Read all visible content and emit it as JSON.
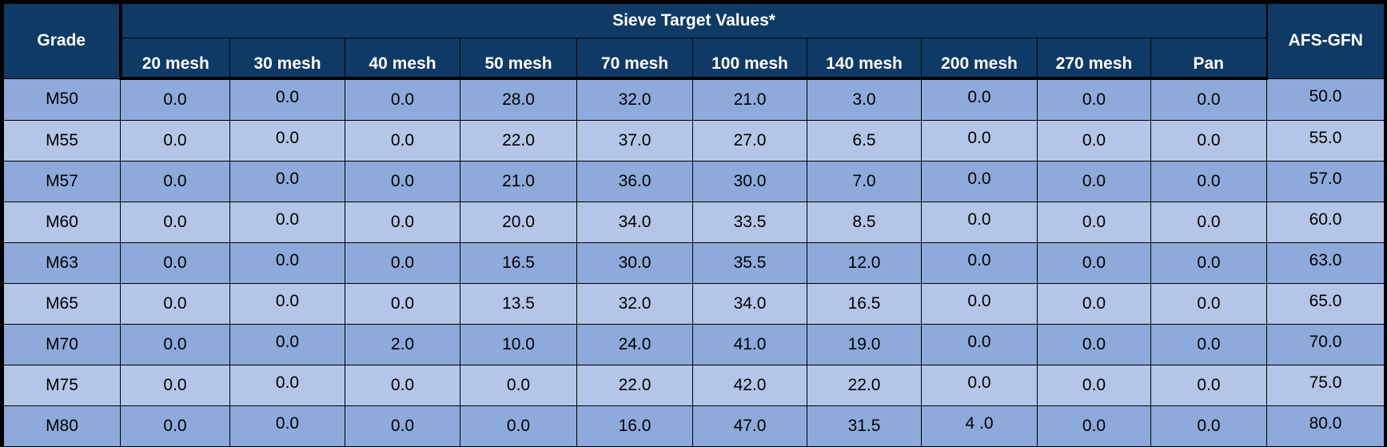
{
  "table": {
    "grade_header": "Grade",
    "group_header": "Sieve Target Values*",
    "afs_header": "AFS-GFN",
    "mesh_headers": [
      "20 mesh",
      "30 mesh",
      "40 mesh",
      "50 mesh",
      "70 mesh",
      "100 mesh",
      "140 mesh",
      "200 mesh",
      "270 mesh",
      "Pan"
    ],
    "rows": [
      {
        "grade": "M50",
        "values": [
          "0.0",
          "0.0",
          "0.0",
          "28.0",
          "32.0",
          "21.0",
          "3.0",
          "0.0",
          "0.0",
          "0.0"
        ],
        "afs": "50.0"
      },
      {
        "grade": "M55",
        "values": [
          "0.0",
          "0.0",
          "0.0",
          "22.0",
          "37.0",
          "27.0",
          "6.5",
          "0.0",
          "0.0",
          "0.0"
        ],
        "afs": "55.0"
      },
      {
        "grade": "M57",
        "values": [
          "0.0",
          "0.0",
          "0.0",
          "21.0",
          "36.0",
          "30.0",
          "7.0",
          "0.0",
          "0.0",
          "0.0"
        ],
        "afs": "57.0"
      },
      {
        "grade": "M60",
        "values": [
          "0.0",
          "0.0",
          "0.0",
          "20.0",
          "34.0",
          "33.5",
          "8.5",
          "0.0",
          "0.0",
          "0.0"
        ],
        "afs": "60.0"
      },
      {
        "grade": "M63",
        "values": [
          "0.0",
          "0.0",
          "0.0",
          "16.5",
          "30.0",
          "35.5",
          "12.0",
          "0.0",
          "0.0",
          "0.0"
        ],
        "afs": "63.0"
      },
      {
        "grade": "M65",
        "values": [
          "0.0",
          "0.0",
          "0.0",
          "13.5",
          "32.0",
          "34.0",
          "16.5",
          "0.0",
          "0.0",
          "0.0"
        ],
        "afs": "65.0"
      },
      {
        "grade": "M70",
        "values": [
          "0.0",
          "0.0",
          "2.0",
          "10.0",
          "24.0",
          "41.0",
          "19.0",
          "0.0",
          "0.0",
          "0.0"
        ],
        "afs": "70.0"
      },
      {
        "grade": "M75",
        "values": [
          "0.0",
          "0.0",
          "0.0",
          "0.0",
          "22.0",
          "42.0",
          "22.0",
          "0.0",
          "0.0",
          "0.0"
        ],
        "afs": "75.0"
      },
      {
        "grade": "M80",
        "values": [
          "0.0",
          "0.0",
          "0.0",
          "0.0",
          "16.0",
          "47.0",
          "31.5",
          "4 .0",
          "0.0",
          "0.0"
        ],
        "afs": "80.0"
      }
    ]
  },
  "colors": {
    "header_bg": "#0f3a66",
    "row_dark": "#8eaadb",
    "row_light": "#b4c6e7",
    "border": "#000000"
  }
}
